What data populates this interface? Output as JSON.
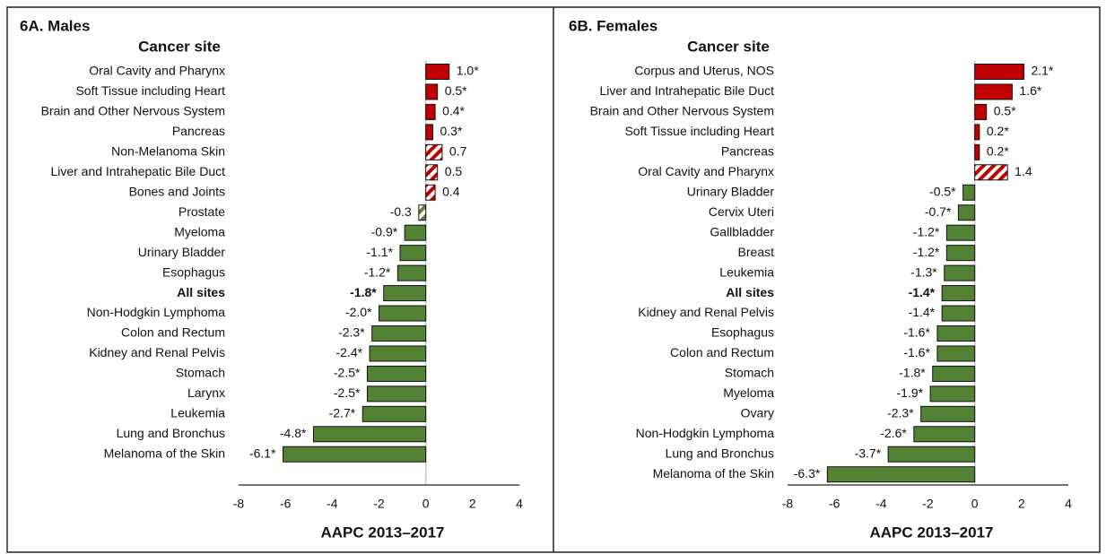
{
  "chart_data": [
    {
      "type": "barh",
      "title": "6A. Males",
      "category_header": "Cancer site",
      "categories": [
        "Oral Cavity and Pharynx",
        "Soft Tissue including Heart",
        "Brain and Other Nervous System",
        "Pancreas",
        "Non-Melanoma Skin",
        "Liver and Intrahepatic Bile Duct",
        "Bones and Joints",
        "Prostate",
        "Myeloma",
        "Urinary Bladder",
        "Esophagus",
        "All sites",
        "Non-Hodgkin Lymphoma",
        "Colon and Rectum",
        "Kidney and Renal Pelvis",
        "Stomach",
        "Larynx",
        "Leukemia",
        "Lung and Bronchus",
        "Melanoma of the Skin"
      ],
      "values": [
        1.0,
        0.5,
        0.4,
        0.3,
        0.7,
        0.5,
        0.4,
        -0.3,
        -0.9,
        -1.1,
        -1.2,
        -1.8,
        -2.0,
        -2.3,
        -2.4,
        -2.5,
        -2.5,
        -2.7,
        -4.8,
        -6.1
      ],
      "value_labels": [
        "1.0*",
        "0.5*",
        "0.4*",
        "0.3*",
        "0.7",
        "0.5",
        "0.4",
        "-0.3",
        "-0.9*",
        "-1.1*",
        "-1.2*",
        "-1.8*",
        "-2.0*",
        "-2.3*",
        "-2.4*",
        "-2.5*",
        "-2.5*",
        "-2.7*",
        "-4.8*",
        "-6.1*"
      ],
      "hatched": [
        false,
        false,
        false,
        false,
        true,
        true,
        true,
        true,
        false,
        false,
        false,
        false,
        false,
        false,
        false,
        false,
        false,
        false,
        false,
        false
      ],
      "bold_categories": [
        11
      ],
      "positive_color": "#c00000",
      "negative_color": "#548235",
      "xlim": [
        -8,
        4
      ],
      "xticks": [
        -8,
        -6,
        -4,
        -2,
        0,
        2,
        4
      ],
      "xlabel": "AAPC 2013–2017"
    },
    {
      "type": "barh",
      "title": "6B. Females",
      "category_header": "Cancer site",
      "categories": [
        "Corpus and Uterus, NOS",
        "Liver and Intrahepatic Bile Duct",
        "Brain and Other Nervous System",
        "Soft Tissue including Heart",
        "Pancreas",
        "Oral Cavity and Pharynx",
        "Urinary Bladder",
        "Cervix Uteri",
        "Gallbladder",
        "Breast",
        "Leukemia",
        "All sites",
        "Kidney and Renal Pelvis",
        "Esophagus",
        "Colon and Rectum",
        "Stomach",
        "Myeloma",
        "Ovary",
        "Non-Hodgkin Lymphoma",
        "Lung and Bronchus",
        "Melanoma of the Skin"
      ],
      "values": [
        2.1,
        1.6,
        0.5,
        0.2,
        0.2,
        1.4,
        -0.5,
        -0.7,
        -1.2,
        -1.2,
        -1.3,
        -1.4,
        -1.4,
        -1.6,
        -1.6,
        -1.8,
        -1.9,
        -2.3,
        -2.6,
        -3.7,
        -6.3
      ],
      "value_labels": [
        "2.1*",
        "1.6*",
        "0.5*",
        "0.2*",
        "0.2*",
        "1.4",
        "-0.5*",
        "-0.7*",
        "-1.2*",
        "-1.2*",
        "-1.3*",
        "-1.4*",
        "-1.4*",
        "-1.6*",
        "-1.6*",
        "-1.8*",
        "-1.9*",
        "-2.3*",
        "-2.6*",
        "-3.7*",
        "-6.3*"
      ],
      "hatched": [
        false,
        false,
        false,
        false,
        false,
        true,
        false,
        false,
        false,
        false,
        false,
        false,
        false,
        false,
        false,
        false,
        false,
        false,
        false,
        false,
        false
      ],
      "bold_categories": [
        11
      ],
      "positive_color": "#c00000",
      "negative_color": "#548235",
      "xlim": [
        -8,
        4
      ],
      "xticks": [
        -8,
        -6,
        -4,
        -2,
        0,
        2,
        4
      ],
      "xlabel": "AAPC 2013–2017"
    }
  ]
}
